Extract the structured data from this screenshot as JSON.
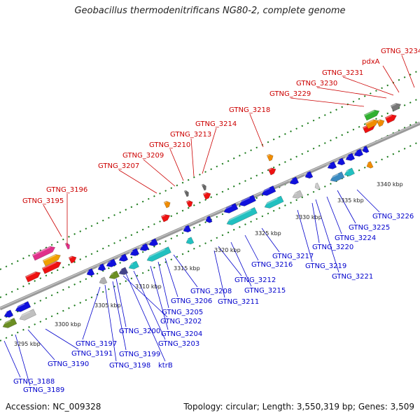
{
  "title": "Geobacillus thermodenitrificans NG80-2, complete genome",
  "accession": "Accession: NC_009328",
  "info": "Topology: circular; Length: 3,550,319 bp; Genes: 3,509",
  "colors": {
    "fwd_label": "#cc0000",
    "rev_label": "#0000cc",
    "backbone": "#888888",
    "tick": "#1a7a1a"
  },
  "scale_labels": [
    "3295 kbp",
    "3300 kbp",
    "3305 kbp",
    "3310 kbp",
    "3315 kbp",
    "3320 kbp",
    "3325 kbp",
    "3330 kbp",
    "3335 kbp",
    "3340 kbp"
  ],
  "forward_labels": [
    "GTNG_3195",
    "GTNG_3196",
    "GTNG_3207",
    "GTNG_3209",
    "GTNG_3210",
    "GTNG_3213",
    "GTNG_3214",
    "GTNG_3218",
    "GTNG_3229",
    "GTNG_3230",
    "GTNG_3231",
    "pdxA",
    "GTNG_3234"
  ],
  "reverse_labels": [
    "GTNG_3188",
    "GTNG_3189",
    "GTNG_3190",
    "GTNG_3191",
    "GTNG_3197",
    "GTNG_3198",
    "GTNG_3199",
    "GTNG_3200",
    "ktrB",
    "GTNG_3202",
    "GTNG_3203",
    "GTNG_3204",
    "GTNG_3205",
    "GTNG_3206",
    "GTNG_3208",
    "GTNG_3211",
    "GTNG_3212",
    "GTNG_3215",
    "GTNG_3216",
    "GTNG_3217",
    "GTNG_3219",
    "GTNG_3220",
    "GTNG_3221",
    "GTNG_3224",
    "GTNG_3225",
    "GTNG_3226"
  ]
}
